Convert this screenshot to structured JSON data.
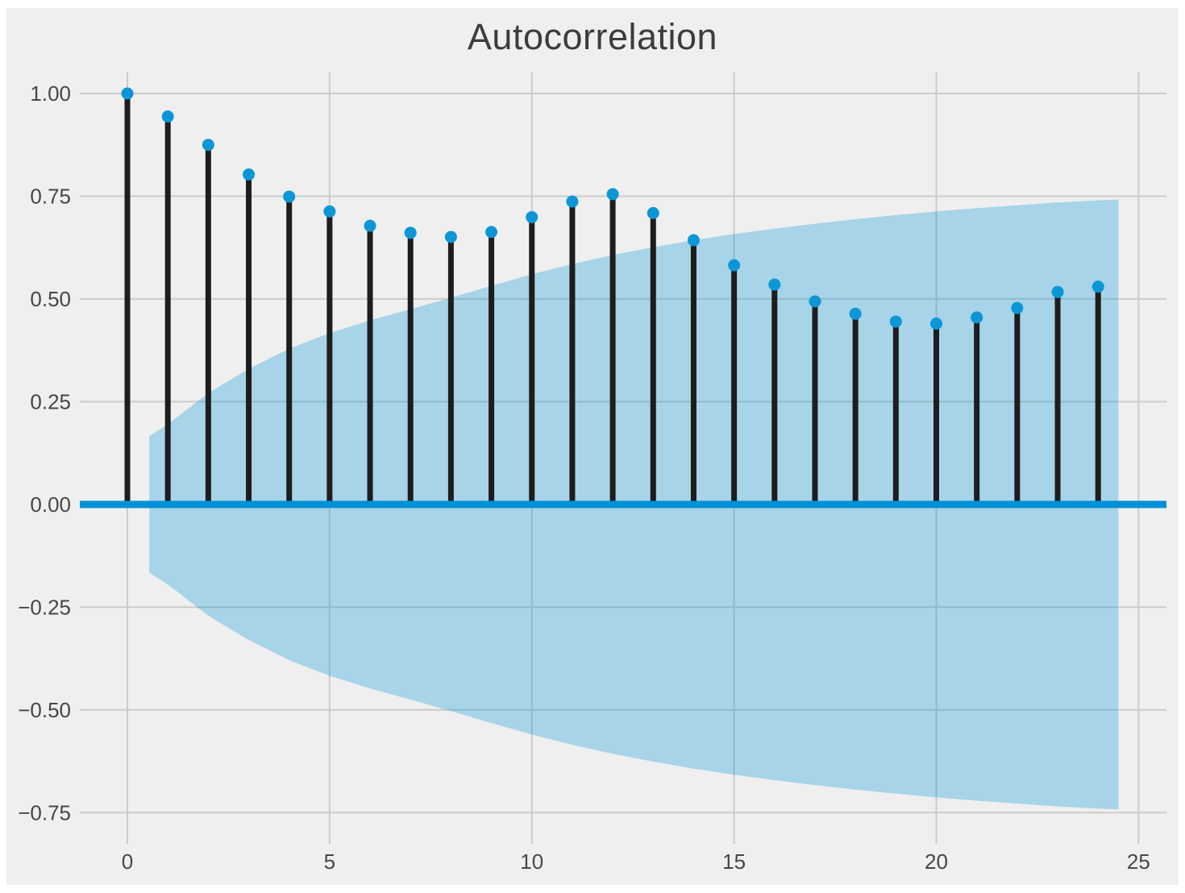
{
  "title": "Autocorrelation",
  "colors": {
    "figure_bg": "#efefef",
    "grid": "#cbcbcb",
    "stem": "#1d1d1d",
    "marker": "#0d96d6",
    "zero_line": "#0090d7",
    "conf_band": "rgba(0,150,216,0.30)",
    "tick_label": "#474747",
    "title": "#3c3c3c"
  },
  "chart_data": {
    "type": "stem",
    "title": "Autocorrelation",
    "xlabel": "",
    "ylabel": "",
    "x": [
      0,
      1,
      2,
      3,
      4,
      5,
      6,
      7,
      8,
      9,
      10,
      11,
      12,
      13,
      14,
      15,
      16,
      17,
      18,
      19,
      20,
      21,
      22,
      23,
      24
    ],
    "values": [
      1.0,
      0.944,
      0.875,
      0.803,
      0.749,
      0.713,
      0.678,
      0.661,
      0.651,
      0.663,
      0.699,
      0.737,
      0.755,
      0.709,
      0.643,
      0.582,
      0.535,
      0.494,
      0.464,
      0.445,
      0.44,
      0.455,
      0.478,
      0.517,
      0.53
    ],
    "conf_band": {
      "comment": "95% confidence band, symmetric about zero; upper boundary values at the lags below, lower boundary is the mirror image",
      "lags": [
        0.54,
        1,
        2,
        3,
        4,
        5,
        6,
        7,
        8,
        9,
        10,
        11,
        12,
        13,
        14,
        15,
        16,
        17,
        18,
        19,
        20,
        21,
        22,
        23,
        24,
        24.5
      ],
      "upper": [
        0.166,
        0.195,
        0.271,
        0.33,
        0.379,
        0.417,
        0.448,
        0.475,
        0.503,
        0.532,
        0.56,
        0.585,
        0.607,
        0.626,
        0.643,
        0.658,
        0.671,
        0.683,
        0.694,
        0.704,
        0.713,
        0.721,
        0.728,
        0.735,
        0.74,
        0.742
      ]
    },
    "xlim": [
      -1.176,
      25.69
    ],
    "ylim": [
      -0.826,
      1.051
    ],
    "grid": true,
    "xticks": [
      0,
      5,
      10,
      15,
      20,
      25
    ],
    "xtick_labels": [
      "0",
      "5",
      "10",
      "15",
      "20",
      "25"
    ],
    "yticks": [
      1.0,
      0.75,
      0.5,
      0.25,
      0.0,
      -0.25,
      -0.5,
      -0.75
    ],
    "ytick_labels": [
      "1.00",
      "0.75",
      "0.50",
      "0.25",
      "0.00",
      "−0.25",
      "−0.50",
      "−0.75"
    ]
  }
}
